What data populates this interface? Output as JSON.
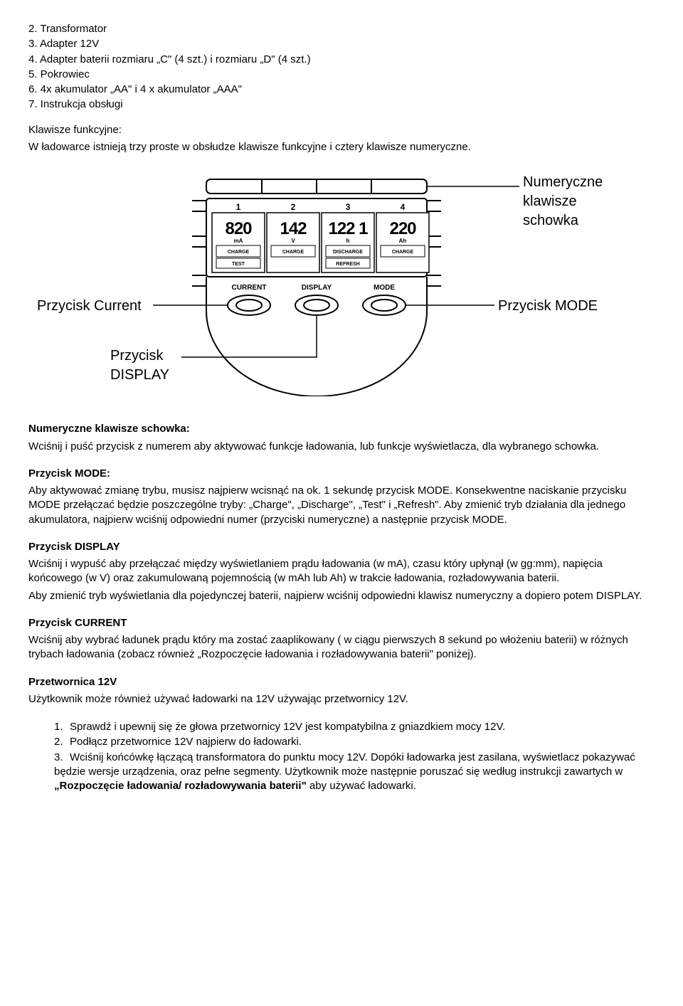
{
  "items_top": [
    {
      "n": "2.",
      "t": "Transformator"
    },
    {
      "n": "3.",
      "t": "Adapter 12V"
    },
    {
      "n": "4.",
      "t": "Adapter baterii rozmiaru „C\" (4 szt.) i rozmiaru „D\" (4 szt.)"
    },
    {
      "n": "5.",
      "t": "Pokrowiec"
    },
    {
      "n": "6.",
      "t": "4x akumulator „AA\" i 4 x akumulator „AAA\""
    },
    {
      "n": "7.",
      "t": "Instrukcja obsługi"
    }
  ],
  "klawisze_heading": "Klawisze funkcyjne:",
  "klawisze_text": "W ładowarce istnieją trzy proste w obsłudze klawisze funkcyjne i cztery klawisze numeryczne.",
  "diagram": {
    "label_numeric": "Numeryczne\nklawisze\nschowka",
    "label_current": "Przycisk Current",
    "label_mode": "Przycisk MODE",
    "label_display": "Przycisk\nDISPLAY",
    "btn_current": "CURRENT",
    "btn_display": "DISPLAY",
    "btn_mode": "MODE",
    "slot_digits": [
      "820",
      "142",
      "122 1",
      "220"
    ],
    "slot_units": [
      "mA",
      "V",
      "h",
      "Ah"
    ],
    "slot_sub1": [
      "CHARGE",
      "CHARGE",
      "DISCHARGE",
      "CHARGE"
    ],
    "slot_sub2": [
      "TEST",
      "",
      "REFRESH",
      ""
    ],
    "slot_nums": [
      "1",
      "2",
      "3",
      "4"
    ]
  },
  "sec_numeric_h": "Numeryczne klawisze schowka:",
  "sec_numeric_t": "Wciśnij i puść przycisk z numerem aby aktywować funkcje ładowania, lub funkcje wyświetlacza, dla wybranego schowka.",
  "sec_mode_h": "Przycisk MODE:",
  "sec_mode_t": "Aby aktywować zmianę trybu, musisz najpierw wcisnąć na ok. 1 sekundę przycisk MODE. Konsekwentne naciskanie przycisku MODE przełączać będzie poszczególne tryby: „Charge\", „Discharge\", „Test\" i „Refresh\". Aby zmienić tryb działania dla jednego akumulatora, najpierw wciśnij odpowiedni numer (przyciski numeryczne) a następnie przycisk MODE.",
  "sec_display_h": "Przycisk DISPLAY",
  "sec_display_t1": "Wciśnij i wypuść aby przełączać między wyświetlaniem prądu ładowania (w mA), czasu który upłynął (w gg:mm), napięcia końcowego (w V) oraz zakumulowaną pojemnością (w mAh lub Ah) w trakcie ładowania, rozładowywania baterii.",
  "sec_display_t2": "Aby zmienić tryb wyświetlania dla pojedynczej baterii, najpierw wciśnij odpowiedni klawisz numeryczny a dopiero potem DISPLAY.",
  "sec_current_h": "Przycisk CURRENT",
  "sec_current_t": "Wciśnij aby wybrać ładunek prądu który ma zostać zaaplikowany ( w ciągu pierwszych 8 sekund po włożeniu baterii) w różnych trybach ładowania (zobacz również „Rozpoczęcie ładowania i rozładowywania baterii\" poniżej).",
  "sec_12v_h": "Przetwornica 12V",
  "sec_12v_t": "Użytkownik może również używać ładowarki na 12V używając przetwornicy 12V.",
  "sub_items": [
    {
      "n": "1.",
      "t": "Sprawdź i upewnij się że głowa przetwornicy 12V jest kompatybilna z gniazdkiem mocy 12V."
    },
    {
      "n": "2.",
      "t": "Podłącz przetwornice 12V najpierw do ładowarki."
    }
  ],
  "sub3_n": "3.",
  "sub3_a": "Wciśnij końcówkę łączącą transformatora do punktu mocy 12V. Dopóki ładowarka jest zasilana, wyświetlacz pokazywać będzie wersje urządzenia, oraz pełne segmenty. Użytkownik może następnie poruszać się według instrukcji zawartych w ",
  "sub3_b": "„Rozpoczęcie ładowania/ rozładowywania baterii\"",
  "sub3_c": " aby używać ładowarki."
}
